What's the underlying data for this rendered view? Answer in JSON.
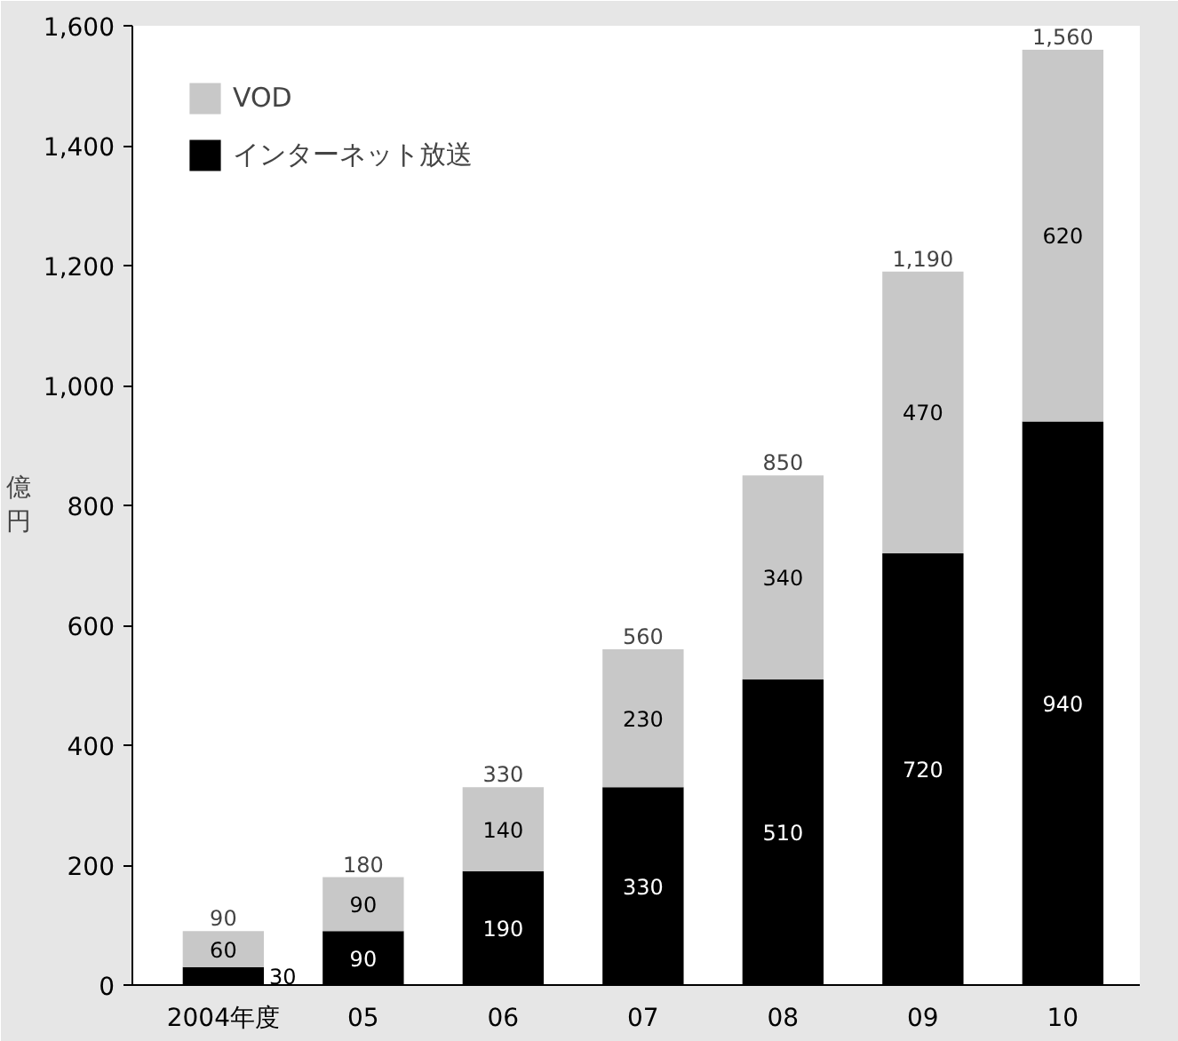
{
  "chart_data": {
    "type": "bar",
    "stacked": true,
    "ylabel": "億円",
    "categories": [
      "2004年度",
      "05",
      "06",
      "07",
      "08",
      "09",
      "10"
    ],
    "series": [
      {
        "name": "インターネット放送",
        "color": "#000000",
        "values": [
          30,
          90,
          190,
          330,
          510,
          720,
          940
        ]
      },
      {
        "name": "VOD",
        "color": "#c8c8c8",
        "values": [
          60,
          90,
          140,
          230,
          340,
          470,
          620
        ]
      }
    ],
    "totals": [
      "90",
      "180",
      "330",
      "560",
      "850",
      "1,190",
      "1,560"
    ],
    "data_labels": true,
    "ylim": [
      0,
      1600
    ],
    "yticks": [
      0,
      200,
      400,
      600,
      800,
      {
        "value": 1000,
        "label": "1,000"
      },
      {
        "value": 1200,
        "label": "1,200"
      },
      {
        "value": 1400,
        "label": "1,400"
      },
      {
        "value": 1600,
        "label": "1,600"
      }
    ],
    "grid": false,
    "legend": "top left"
  }
}
